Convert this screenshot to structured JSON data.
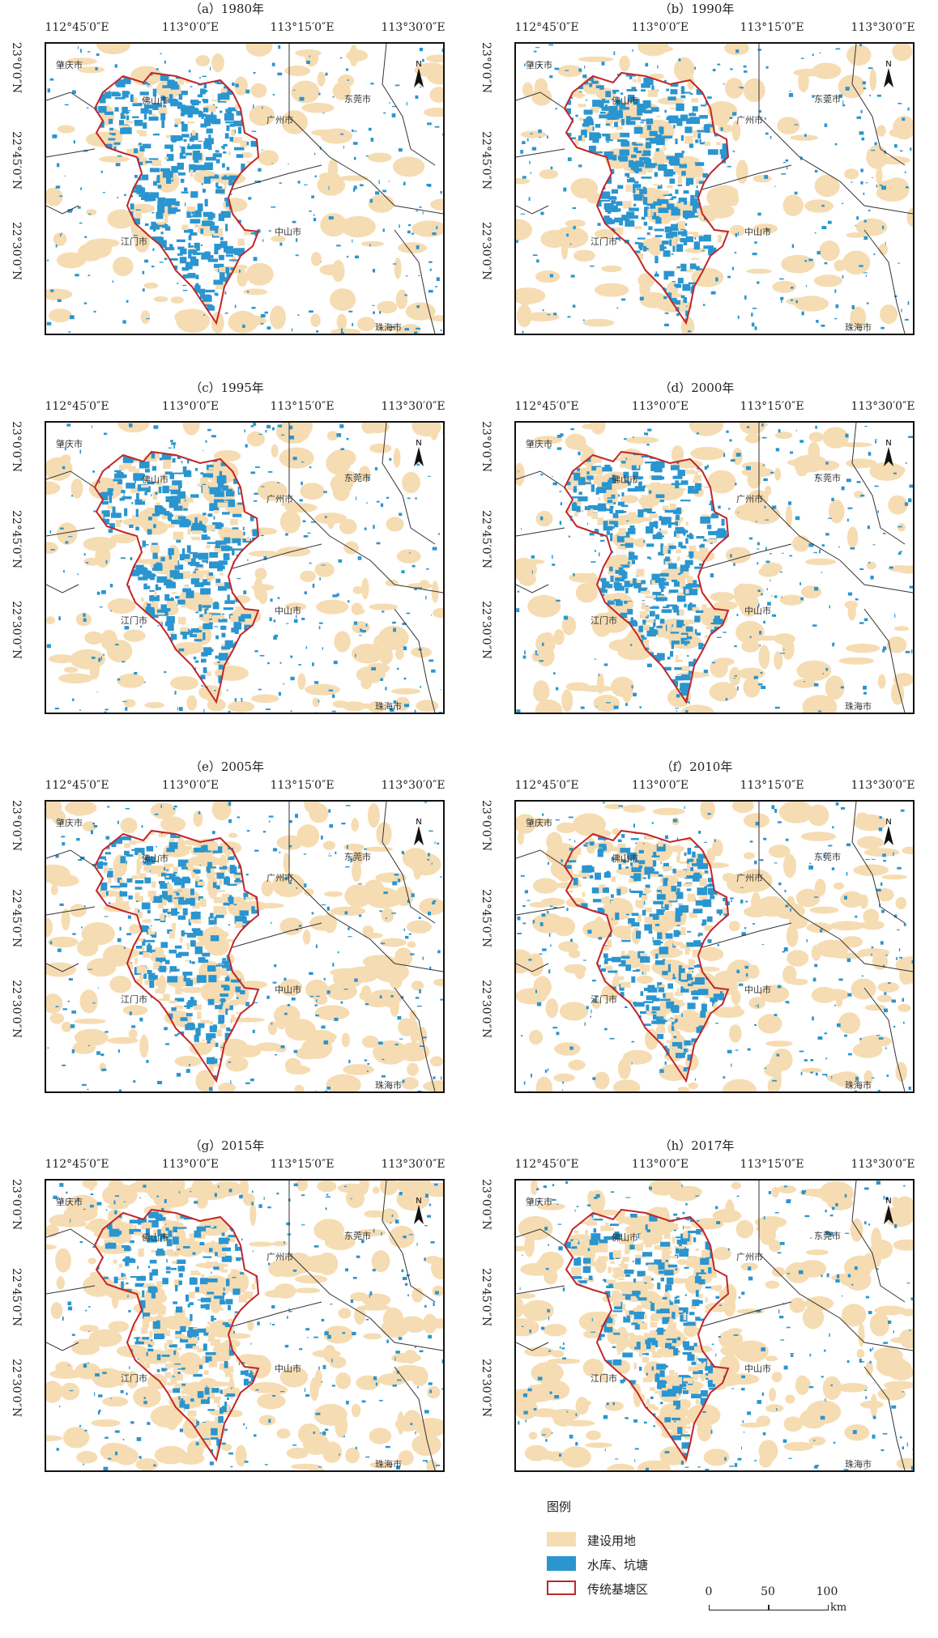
{
  "colors": {
    "built_land": "#f6dcb2",
    "water": "#2a95cf",
    "boundary": "#c0262a",
    "line": "#333333"
  },
  "panels": [
    {
      "title": "（a）1980年",
      "lon_labels": [
        "112°45′0″E",
        "113°0′0″E",
        "113°15′0″E",
        "113°30′0″E"
      ],
      "lat_labels": [
        "23°0′0″N",
        "22°45′0″N",
        "22°30′0″N"
      ],
      "cities": [
        "肇庆市",
        "佛山市",
        "广州市",
        "东莞市",
        "江门市",
        "中山市",
        "珠海市"
      ],
      "build_density": 0.18,
      "water_density": 0.55
    },
    {
      "title": "（b）1990年",
      "lon_labels": [
        "112°45′0″E",
        "113°0′0″E",
        "113°15′0″E",
        "113°30′0″E"
      ],
      "lat_labels": [
        "23°0′0″N",
        "22°45′0″N",
        "22°30′0″N"
      ],
      "cities": [
        "肇庆市",
        "佛山市",
        "广州市",
        "东莞市",
        "江门市",
        "中山市",
        "珠海市"
      ],
      "build_density": 0.22,
      "water_density": 0.6
    },
    {
      "title": "（c）1995年",
      "lon_labels": [
        "112°45′0″E",
        "113°0′0″E",
        "113°15′0″E",
        "113°30′0″E"
      ],
      "lat_labels": [
        "23°0′0″N",
        "22°45′0″N",
        "22°30′0″N"
      ],
      "cities": [
        "肇庆市",
        "佛山市",
        "广州市",
        "东莞市",
        "江门市",
        "中山市",
        "珠海市"
      ],
      "build_density": 0.3,
      "water_density": 0.65
    },
    {
      "title": "（d）2000年",
      "lon_labels": [
        "112°45′0″E",
        "113°0′0″E",
        "113°15′0″E",
        "113°30′0″E"
      ],
      "lat_labels": [
        "23°0′0″N",
        "22°45′0″N",
        "22°30′0″N"
      ],
      "cities": [
        "肇庆市",
        "佛山市",
        "广州市",
        "东莞市",
        "江门市",
        "中山市",
        "珠海市"
      ],
      "build_density": 0.35,
      "water_density": 0.66
    },
    {
      "title": "（e）2005年",
      "lon_labels": [
        "112°45′0″E",
        "113°0′0″E",
        "113°15′0″E",
        "113°30′0″E"
      ],
      "lat_labels": [
        "23°0′0″N",
        "22°45′0″N",
        "22°30′0″N"
      ],
      "cities": [
        "肇庆市",
        "佛山市",
        "广州市",
        "东莞市",
        "江门市",
        "中山市",
        "珠海市"
      ],
      "build_density": 0.45,
      "water_density": 0.6
    },
    {
      "title": "（f）2010年",
      "lon_labels": [
        "112°45′0″E",
        "113°0′0″E",
        "113°15′0″E",
        "113°30′0″E"
      ],
      "lat_labels": [
        "23°0′0″N",
        "22°45′0″N",
        "22°30′0″N"
      ],
      "cities": [
        "肇庆市",
        "佛山市",
        "广州市",
        "东莞市",
        "江门市",
        "中山市",
        "珠海市"
      ],
      "build_density": 0.5,
      "water_density": 0.58
    },
    {
      "title": "（g）2015年",
      "lon_labels": [
        "112°45′0″E",
        "113°0′0″E",
        "113°15′0″E",
        "113°30′0″E"
      ],
      "lat_labels": [
        "23°0′0″N",
        "22°45′0″N",
        "22°30′0″N"
      ],
      "cities": [
        "肇庆市",
        "佛山市",
        "广州市",
        "东莞市",
        "江门市",
        "中山市",
        "珠海市"
      ],
      "build_density": 0.55,
      "water_density": 0.5
    },
    {
      "title": "（h）2017年",
      "lon_labels": [
        "112°45′0″E",
        "113°0′0″E",
        "113°15′0″E",
        "113°30′0″E"
      ],
      "lat_labels": [
        "23°0′0″N",
        "22°45′0″N",
        "22°30′0″N"
      ],
      "cities": [
        "肇庆市",
        "佛山市",
        "广州市",
        "东莞市",
        "江门市",
        "中山市",
        "珠海市"
      ],
      "build_density": 0.56,
      "water_density": 0.48
    }
  ],
  "legend": {
    "title": "图例",
    "items": [
      {
        "label": "建设用地",
        "type": "fill",
        "color": "#f6dcb2"
      },
      {
        "label": "水库、坑塘",
        "type": "fill",
        "color": "#2a95cf"
      },
      {
        "label": "传统基塘区",
        "type": "outline",
        "color": "#c0262a"
      }
    ],
    "scale_ticks": [
      "0",
      "50",
      "100"
    ],
    "scale_unit": "km"
  },
  "north_label": "N"
}
